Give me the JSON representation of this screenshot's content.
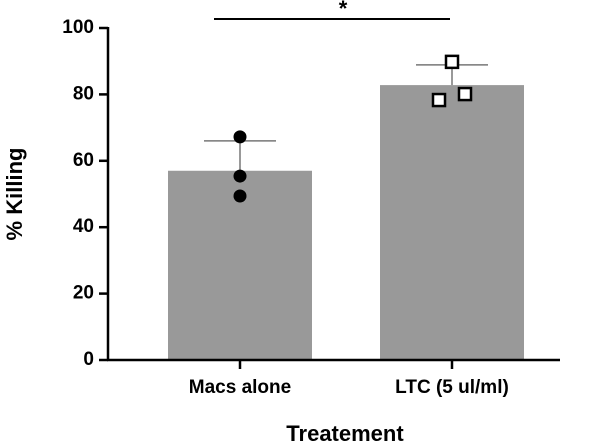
{
  "chart_data": {
    "type": "bar",
    "categories": [
      "Macs alone",
      "LTC (5 ul/ml)"
    ],
    "values": [
      57,
      82.8
    ],
    "errors": [
      9,
      6.1
    ],
    "points": [
      [
        67.2,
        55.4,
        49.4
      ],
      [
        89.8,
        78.3,
        80.1
      ]
    ],
    "markers": [
      "circle",
      "square"
    ],
    "color": "#999999",
    "ylabel": "% Killing",
    "xlabel": "Treatement",
    "annotation": "*",
    "ylim": [
      0,
      100
    ],
    "yticks": [
      0,
      20,
      40,
      60,
      80,
      100
    ]
  }
}
